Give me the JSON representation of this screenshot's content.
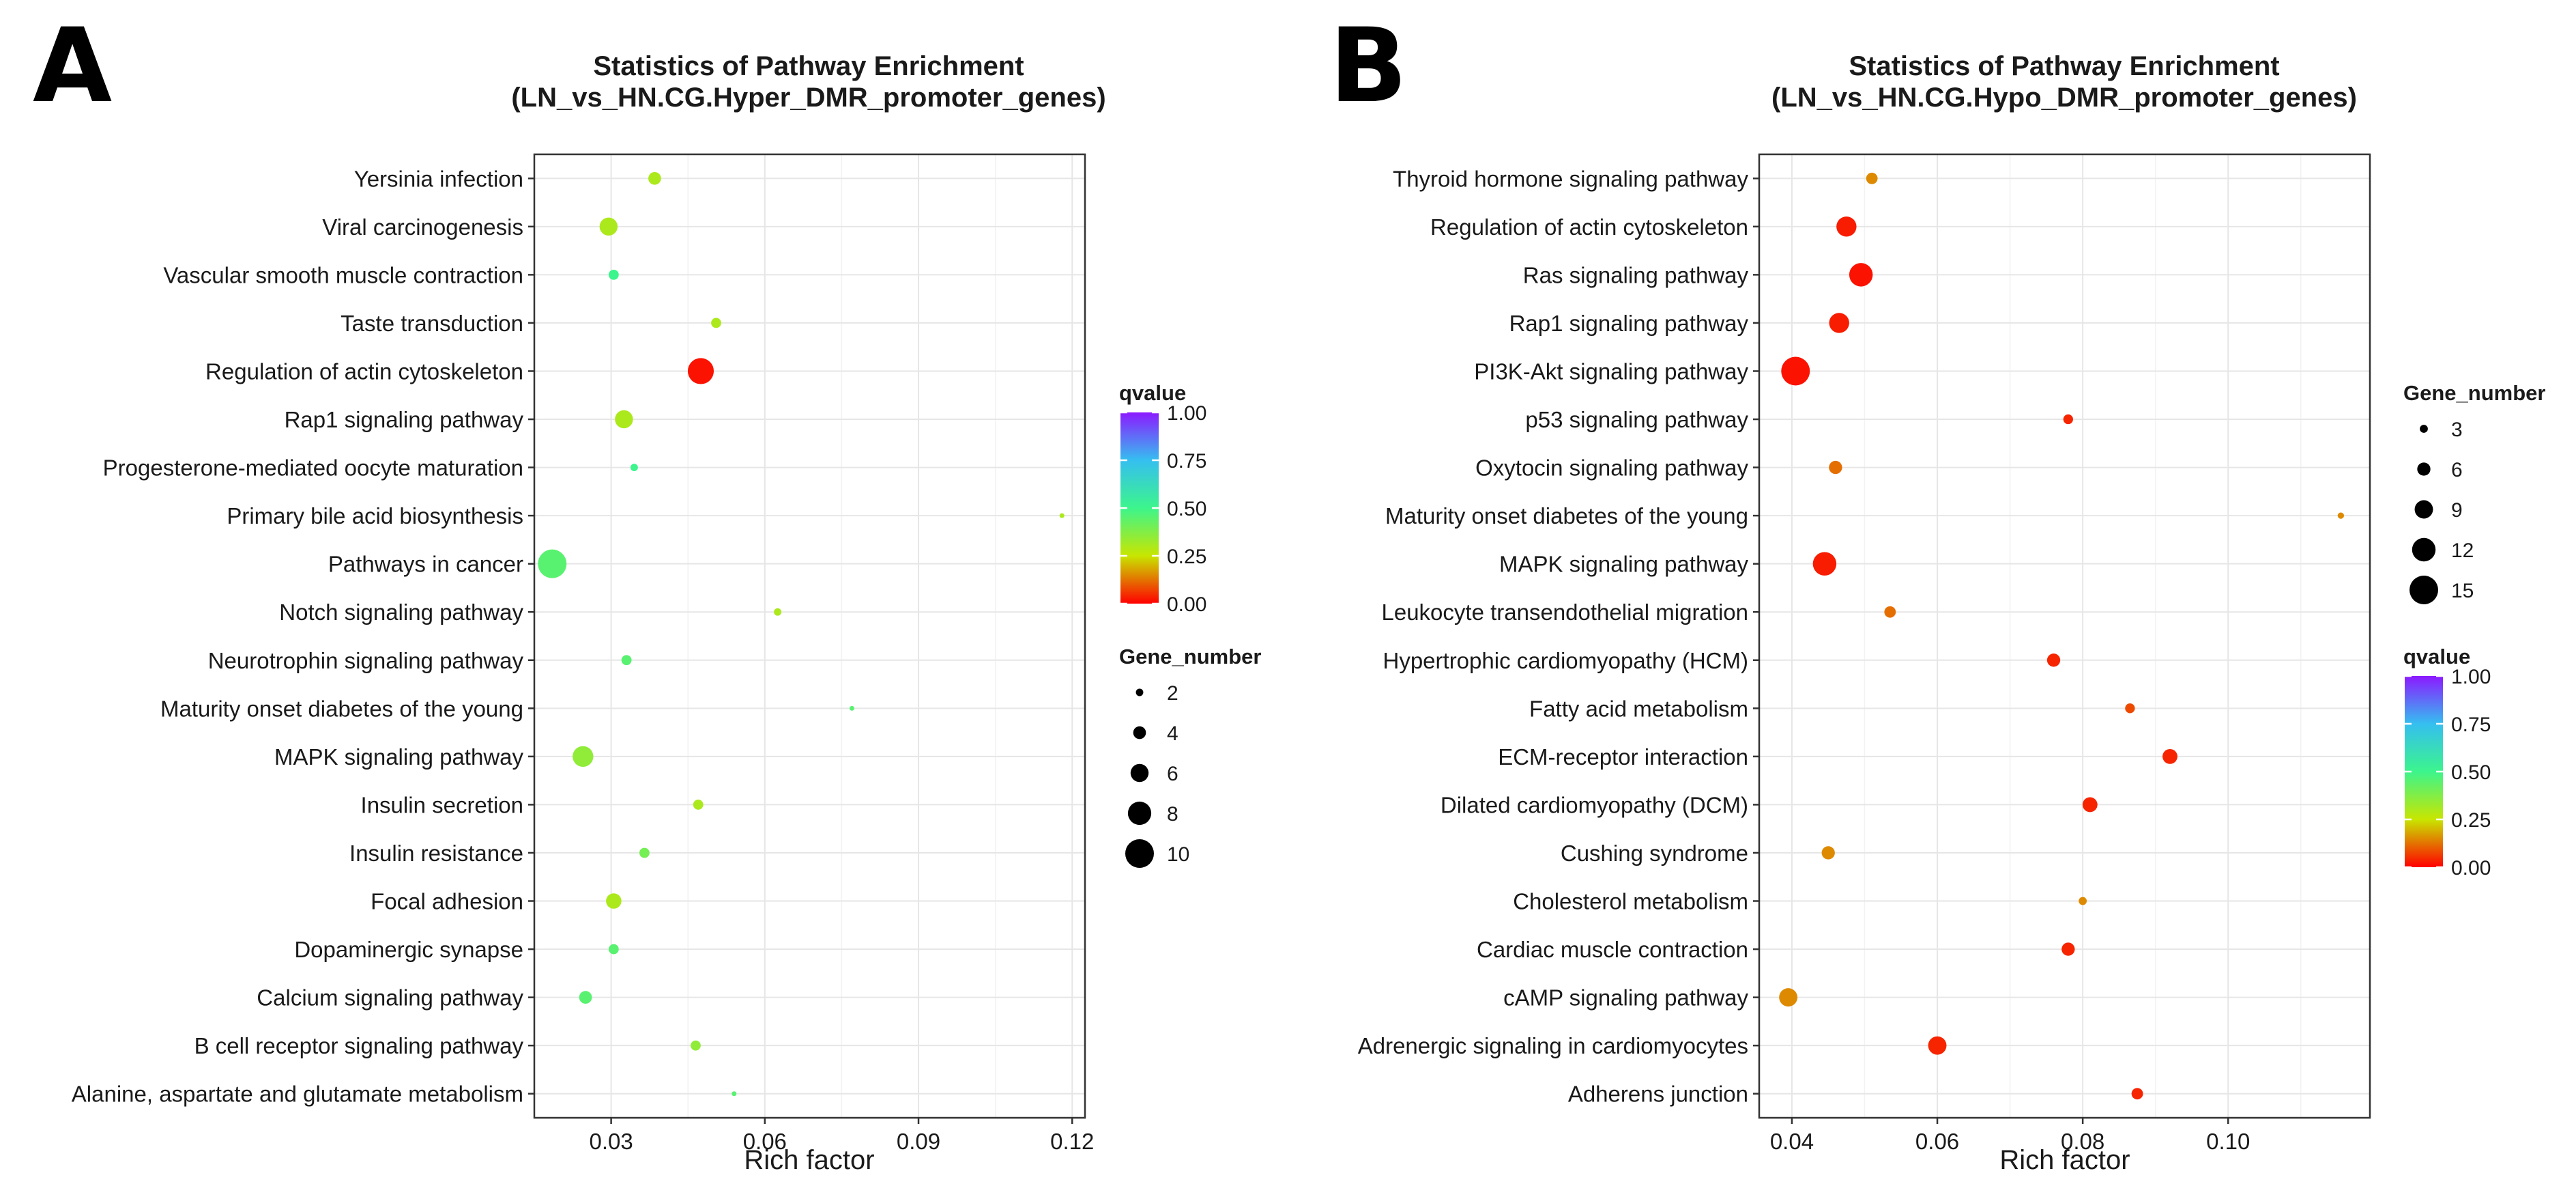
{
  "chart_data": [
    {
      "type": "scatter",
      "panel_label": "A",
      "title_line1": "Statistics of Pathway Enrichment",
      "title_line2": "(LN_vs_HN.CG.Hyper_DMR_promoter_genes)",
      "xlabel": "Rich factor",
      "ylabel": "",
      "xlim": [
        0.015,
        0.1225
      ],
      "xticks": [
        0.03,
        0.06,
        0.09,
        0.12
      ],
      "xtick_labels": [
        "0.03",
        "0.06",
        "0.09",
        "0.12"
      ],
      "grid": true,
      "legend_order": [
        "qvalue",
        "gene_number"
      ],
      "categories": [
        "Yersinia infection",
        "Viral carcinogenesis",
        "Vascular smooth muscle contraction",
        "Taste transduction",
        "Regulation of actin cytoskeleton",
        "Rap1 signaling pathway",
        "Progesterone-mediated oocyte maturation",
        "Primary bile acid biosynthesis",
        "Pathways in cancer",
        "Notch signaling pathway",
        "Neurotrophin signaling pathway",
        "Maturity onset diabetes of the young",
        "MAPK signaling pathway",
        "Insulin secretion",
        "Insulin resistance",
        "Focal adhesion",
        "Dopaminergic synapse",
        "Calcium signaling pathway",
        "B cell receptor signaling pathway",
        "Alanine, aspartate and glutamate metabolism"
      ],
      "points": [
        {
          "pathway": "Yersinia infection",
          "rich_factor": 0.0385,
          "gene_number": 4,
          "qvalue": 0.3
        },
        {
          "pathway": "Viral carcinogenesis",
          "rich_factor": 0.0295,
          "gene_number": 6,
          "qvalue": 0.3
        },
        {
          "pathway": "Vascular smooth muscle contraction",
          "rich_factor": 0.0305,
          "gene_number": 3,
          "qvalue": 0.5
        },
        {
          "pathway": "Taste transduction",
          "rich_factor": 0.0505,
          "gene_number": 3,
          "qvalue": 0.3
        },
        {
          "pathway": "Regulation of actin cytoskeleton",
          "rich_factor": 0.0475,
          "gene_number": 9,
          "qvalue": 0.02
        },
        {
          "pathway": "Rap1 signaling pathway",
          "rich_factor": 0.0325,
          "gene_number": 6,
          "qvalue": 0.3
        },
        {
          "pathway": "Progesterone-mediated oocyte maturation",
          "rich_factor": 0.0345,
          "gene_number": 2,
          "qvalue": 0.5
        },
        {
          "pathway": "Primary bile acid biosynthesis",
          "rich_factor": 0.118,
          "gene_number": 1,
          "qvalue": 0.3
        },
        {
          "pathway": "Pathways in cancer",
          "rich_factor": 0.0185,
          "gene_number": 10,
          "qvalue": 0.45
        },
        {
          "pathway": "Notch signaling pathway",
          "rich_factor": 0.0625,
          "gene_number": 2,
          "qvalue": 0.3
        },
        {
          "pathway": "Neurotrophin signaling pathway",
          "rich_factor": 0.033,
          "gene_number": 3,
          "qvalue": 0.45
        },
        {
          "pathway": "Maturity onset diabetes of the young",
          "rich_factor": 0.077,
          "gene_number": 1,
          "qvalue": 0.45
        },
        {
          "pathway": "MAPK signaling pathway",
          "rich_factor": 0.0245,
          "gene_number": 7,
          "qvalue": 0.35
        },
        {
          "pathway": "Insulin secretion",
          "rich_factor": 0.047,
          "gene_number": 3,
          "qvalue": 0.3
        },
        {
          "pathway": "Insulin resistance",
          "rich_factor": 0.0365,
          "gene_number": 3,
          "qvalue": 0.4
        },
        {
          "pathway": "Focal adhesion",
          "rich_factor": 0.0305,
          "gene_number": 5,
          "qvalue": 0.3
        },
        {
          "pathway": "Dopaminergic synapse",
          "rich_factor": 0.0305,
          "gene_number": 3,
          "qvalue": 0.45
        },
        {
          "pathway": "Calcium signaling pathway",
          "rich_factor": 0.025,
          "gene_number": 4,
          "qvalue": 0.45
        },
        {
          "pathway": "B cell receptor signaling pathway",
          "rich_factor": 0.0465,
          "gene_number": 3,
          "qvalue": 0.35
        },
        {
          "pathway": "Alanine, aspartate and glutamate metabolism",
          "rich_factor": 0.054,
          "gene_number": 1,
          "qvalue": 0.45
        }
      ],
      "color_legend": {
        "title": "qvalue",
        "range": [
          0,
          1
        ],
        "ticks": [
          "1.00",
          "0.75",
          "0.50",
          "0.25",
          "0.00"
        ]
      },
      "size_legend": {
        "title": "Gene_number",
        "values": [
          2,
          4,
          6,
          8,
          10
        ],
        "labels": [
          "2",
          "4",
          "6",
          "8",
          "10"
        ]
      }
    },
    {
      "type": "scatter",
      "panel_label": "B",
      "title_line1": "Statistics of Pathway Enrichment",
      "title_line2": "(LN_vs_HN.CG.Hypo_DMR_promoter_genes)",
      "xlabel": "Rich factor",
      "ylabel": "",
      "xlim": [
        0.0355,
        0.1195
      ],
      "xticks": [
        0.04,
        0.06,
        0.08,
        0.1
      ],
      "xtick_labels": [
        "0.04",
        "0.06",
        "0.08",
        "0.10"
      ],
      "grid": true,
      "legend_order": [
        "gene_number",
        "qvalue"
      ],
      "categories": [
        "Thyroid hormone signaling pathway",
        "Regulation of actin cytoskeleton",
        "Ras signaling pathway",
        "Rap1 signaling pathway",
        "PI3K-Akt signaling pathway",
        "p53 signaling pathway",
        "Oxytocin signaling pathway",
        "Maturity onset diabetes of the young",
        "MAPK signaling pathway",
        "Leukocyte transendothelial migration",
        "Hypertrophic cardiomyopathy (HCM)",
        "Fatty acid metabolism",
        "ECM-receptor interaction",
        "Dilated cardiomyopathy (DCM)",
        "Cushing syndrome",
        "Cholesterol metabolism",
        "Cardiac muscle contraction",
        "cAMP signaling pathway",
        "Adrenergic signaling in cardiomyocytes",
        "Adherens junction"
      ],
      "points": [
        {
          "pathway": "Thyroid hormone signaling pathway",
          "rich_factor": 0.051,
          "gene_number": 5,
          "qvalue": 0.15
        },
        {
          "pathway": "Regulation of actin cytoskeleton",
          "rich_factor": 0.0475,
          "gene_number": 10,
          "qvalue": 0.03
        },
        {
          "pathway": "Ras signaling pathway",
          "rich_factor": 0.0495,
          "gene_number": 12,
          "qvalue": 0.02
        },
        {
          "pathway": "Rap1 signaling pathway",
          "rich_factor": 0.0465,
          "gene_number": 10,
          "qvalue": 0.03
        },
        {
          "pathway": "PI3K-Akt signaling pathway",
          "rich_factor": 0.0405,
          "gene_number": 15,
          "qvalue": 0.02
        },
        {
          "pathway": "p53 signaling pathway",
          "rich_factor": 0.078,
          "gene_number": 4,
          "qvalue": 0.04
        },
        {
          "pathway": "Oxytocin signaling pathway",
          "rich_factor": 0.046,
          "gene_number": 6,
          "qvalue": 0.12
        },
        {
          "pathway": "Maturity onset diabetes of the young",
          "rich_factor": 0.1155,
          "gene_number": 2,
          "qvalue": 0.15
        },
        {
          "pathway": "MAPK signaling pathway",
          "rich_factor": 0.0445,
          "gene_number": 12,
          "qvalue": 0.03
        },
        {
          "pathway": "Leukocyte transendothelial migration",
          "rich_factor": 0.0535,
          "gene_number": 5,
          "qvalue": 0.12
        },
        {
          "pathway": "Hypertrophic cardiomyopathy (HCM)",
          "rich_factor": 0.076,
          "gene_number": 6,
          "qvalue": 0.04
        },
        {
          "pathway": "Fatty acid metabolism",
          "rich_factor": 0.0865,
          "gene_number": 4,
          "qvalue": 0.08
        },
        {
          "pathway": "ECM-receptor interaction",
          "rich_factor": 0.092,
          "gene_number": 7,
          "qvalue": 0.04
        },
        {
          "pathway": "Dilated cardiomyopathy (DCM)",
          "rich_factor": 0.081,
          "gene_number": 7,
          "qvalue": 0.04
        },
        {
          "pathway": "Cushing syndrome",
          "rich_factor": 0.045,
          "gene_number": 6,
          "qvalue": 0.15
        },
        {
          "pathway": "Cholesterol metabolism",
          "rich_factor": 0.08,
          "gene_number": 3,
          "qvalue": 0.15
        },
        {
          "pathway": "Cardiac muscle contraction",
          "rich_factor": 0.078,
          "gene_number": 6,
          "qvalue": 0.04
        },
        {
          "pathway": "cAMP signaling pathway",
          "rich_factor": 0.0395,
          "gene_number": 9,
          "qvalue": 0.15
        },
        {
          "pathway": "Adrenergic signaling in cardiomyocytes",
          "rich_factor": 0.06,
          "gene_number": 9,
          "qvalue": 0.04
        },
        {
          "pathway": "Adherens junction",
          "rich_factor": 0.0875,
          "gene_number": 5,
          "qvalue": 0.04
        }
      ],
      "color_legend": {
        "title": "qvalue",
        "range": [
          0,
          1
        ],
        "ticks": [
          "1.00",
          "0.75",
          "0.50",
          "0.25",
          "0.00"
        ]
      },
      "size_legend": {
        "title": "Gene_number",
        "values": [
          3,
          6,
          9,
          12,
          15
        ],
        "labels": [
          "3",
          "6",
          "9",
          "12",
          "15"
        ]
      }
    }
  ]
}
